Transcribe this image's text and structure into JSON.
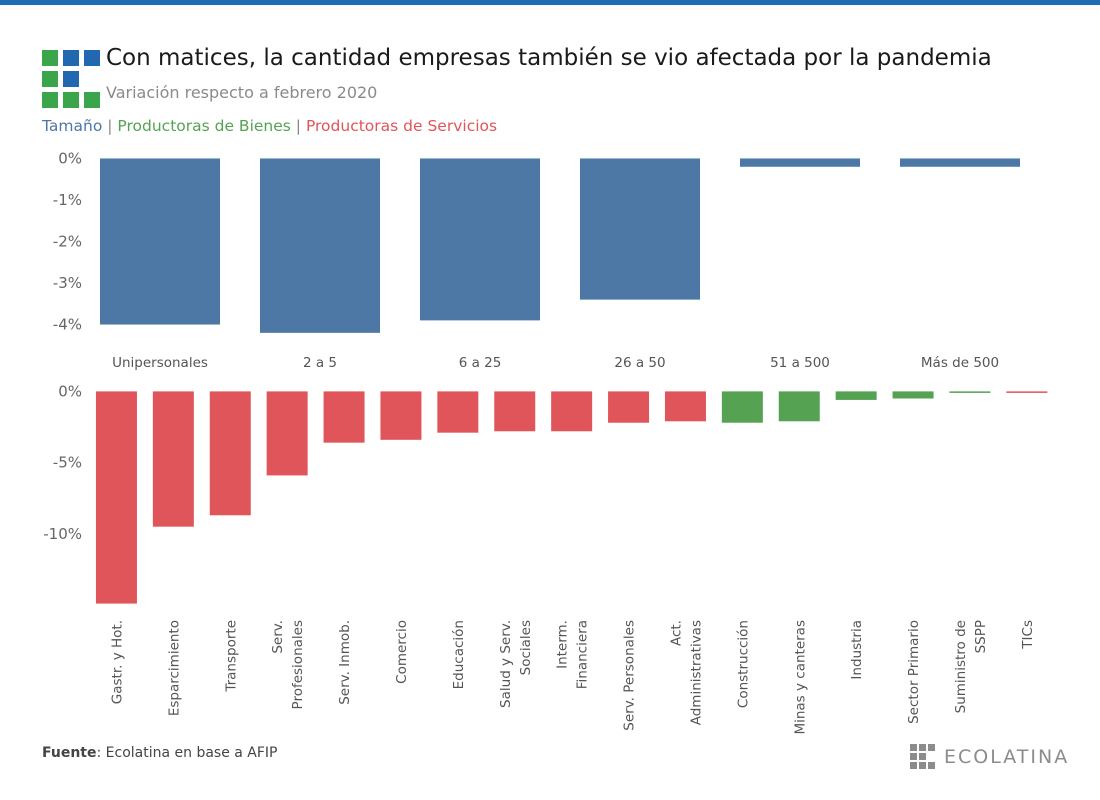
{
  "header": {
    "title": "Con matices, la cantidad empresas también se vio afectada por la pandemia",
    "subtitle": "Variación respecto a febrero 2020"
  },
  "legend": {
    "size_label": "Tamaño",
    "goods_label": "Productoras de Bienes",
    "services_label": "Productoras de Servicios",
    "separator": "|"
  },
  "colors": {
    "blue": "#4d78a6",
    "green": "#55a352",
    "red": "#e05559",
    "top_rule": "#1d6db4",
    "logo_green": "#3aa54a",
    "logo_blue": "#2268b0"
  },
  "chart_data": [
    {
      "type": "bar",
      "categories": [
        "Unipersonales",
        "2 a 5",
        "6 a 25",
        "26 a 50",
        "51 a 500",
        "Más de 500"
      ],
      "values": [
        -4.0,
        -4.2,
        -3.9,
        -3.4,
        -0.2,
        -0.2
      ],
      "ylim": [
        -4.3,
        0.3
      ],
      "yticks": [
        0,
        -1,
        -2,
        -3,
        -4
      ],
      "ytick_labels": [
        "0%",
        "-1%",
        "-2%",
        "-3%",
        "-4%"
      ],
      "grid": false
    },
    {
      "type": "bar",
      "categories": [
        "Gastr. y Hot.",
        "Esparcimiento",
        "Transporte",
        "Serv. Profesionales",
        "Serv. Inmob.",
        "Comercio",
        "Educación",
        "Salud y Serv. Sociales",
        "Interm. Financiera",
        "Serv. Personales",
        "Act. Administrativas",
        "Construcción",
        "Minas y canteras",
        "Industria",
        "Sector Primario",
        "Suministro de SSPP",
        "TICs"
      ],
      "category_lines": [
        [
          "Gastr. y Hot."
        ],
        [
          "Esparcimiento"
        ],
        [
          "Transporte"
        ],
        [
          "Serv.",
          "Profesionales"
        ],
        [
          "Serv. Inmob."
        ],
        [
          "Comercio"
        ],
        [
          "Educación"
        ],
        [
          "Salud y Serv.",
          "Sociales"
        ],
        [
          "Interm.",
          "Financiera"
        ],
        [
          "Serv. Personales"
        ],
        [
          "Act.",
          "Administrativas"
        ],
        [
          "Construcción"
        ],
        [
          "Minas y canteras"
        ],
        [
          "Industria"
        ],
        [
          "Sector Primario"
        ],
        [
          "Suministro de",
          "SSPP"
        ],
        [
          "TICs"
        ]
      ],
      "groups": [
        "services",
        "services",
        "services",
        "services",
        "services",
        "services",
        "services",
        "services",
        "services",
        "services",
        "services",
        "goods",
        "goods",
        "goods",
        "goods",
        "goods",
        "services"
      ],
      "values": [
        -14.9,
        -9.5,
        -8.7,
        -5.9,
        -3.6,
        -3.4,
        -2.9,
        -2.8,
        -2.8,
        -2.2,
        -2.1,
        -2.2,
        -2.1,
        -0.6,
        -0.5,
        -0.1,
        -0.1
      ],
      "ylim": [
        -15,
        0.8
      ],
      "yticks": [
        0,
        -5,
        -10
      ],
      "ytick_labels": [
        "0%",
        "-5%",
        "-10%"
      ],
      "grid": false
    }
  ],
  "footer": {
    "source_label": "Fuente",
    "source_text": ": Ecolatina en base a AFIP",
    "brand": "ECOLATINA"
  }
}
